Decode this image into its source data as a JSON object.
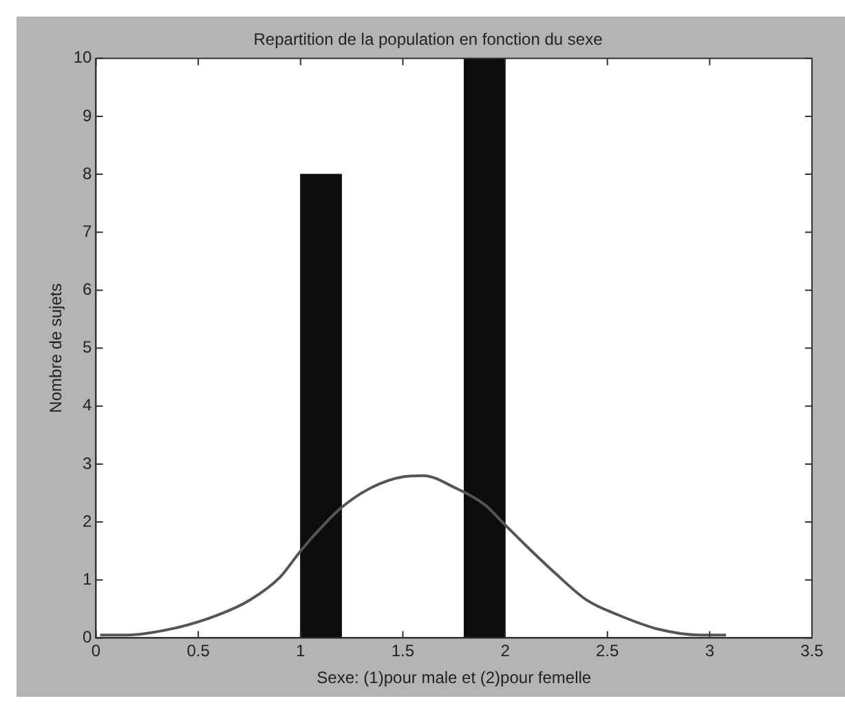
{
  "chart_data": {
    "type": "histogram",
    "title": "Repartition de la population en fonction du sexe",
    "xlabel": "Sexe: (1)pour male et (2)pour femelle",
    "ylabel": "Nombre de sujets",
    "bins": [
      1,
      1.2,
      1.4,
      1.6,
      1.8,
      2
    ],
    "values": [
      8,
      0,
      0,
      0,
      10
    ],
    "color": "#0d0d0d",
    "series": [
      {
        "type": "line",
        "color": "#555555",
        "x": [
          0.02,
          0.15,
          0.4,
          0.6,
          0.75,
          0.9,
          1.0,
          1.1,
          1.2,
          1.35,
          1.5,
          1.6,
          1.75,
          1.9,
          2.0,
          2.1,
          2.25,
          2.4,
          2.55,
          2.75,
          2.95,
          3.08
        ],
        "values": [
          0.05,
          0.05,
          0.18,
          0.4,
          0.65,
          1.05,
          1.5,
          1.9,
          2.25,
          2.6,
          2.78,
          2.8,
          2.6,
          2.3,
          1.95,
          1.6,
          1.1,
          0.65,
          0.4,
          0.15,
          0.05,
          0.05
        ]
      }
    ],
    "xlim": [
      0,
      3.5
    ],
    "xticks": [
      0,
      0.5,
      1,
      1.5,
      2,
      2.5,
      3,
      3.5
    ],
    "ylim": [
      0,
      10
    ],
    "yticks": [
      0,
      1,
      2,
      3,
      4,
      5,
      6,
      7,
      8,
      9,
      10
    ],
    "grid": false,
    "legend": false,
    "marker": "none",
    "line_style": "solid"
  }
}
